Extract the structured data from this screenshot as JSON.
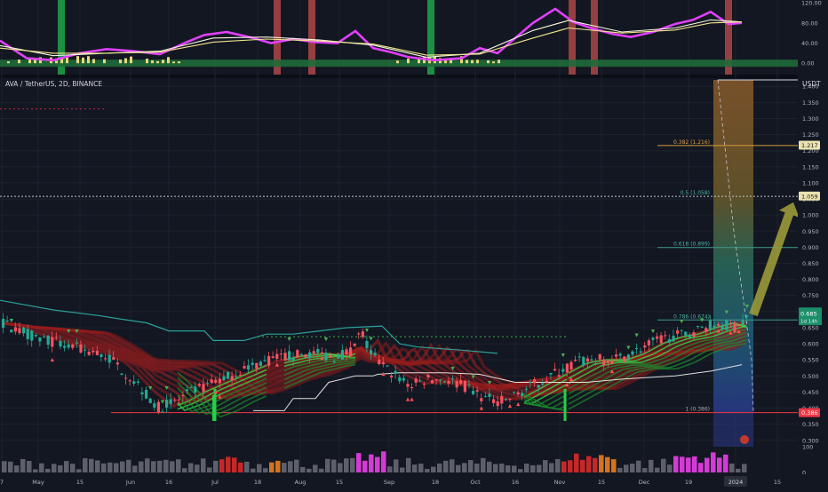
{
  "symbol_title": "AVA / TetherUS, 2D, BINANCE",
  "currency": "USDT",
  "colors": {
    "background": "#131722",
    "grid": "#1e222d",
    "up": "#26a69a",
    "down": "#ef5350",
    "ribbon_red": "#b71c1c",
    "ribbon_green": "#1b8f2a",
    "indicator_magenta": "#e040fb",
    "indicator_yellow": "#f0e68c",
    "fib_line": "#d1d4dc",
    "arrow": "#9c9a3a",
    "support": "#f23645"
  },
  "chart_data": [
    {
      "type": "line",
      "panel": "oscillator",
      "ylim": [
        -12,
        122
      ],
      "y_ticks": [
        "120.00",
        "80.00",
        "40.00",
        "0.00"
      ],
      "series": [
        {
          "color": "#e040fb",
          "points": [
            [
              0,
              45
            ],
            [
              30,
              10
            ],
            [
              60,
              6
            ],
            [
              90,
              20
            ],
            [
              120,
              28
            ],
            [
              150,
              24
            ],
            [
              180,
              18
            ],
            [
              210,
              42
            ],
            [
              230,
              56
            ],
            [
              255,
              62
            ],
            [
              285,
              50
            ],
            [
              305,
              40
            ],
            [
              330,
              48
            ],
            [
              355,
              42
            ],
            [
              380,
              40
            ],
            [
              400,
              64
            ],
            [
              420,
              30
            ],
            [
              440,
              22
            ],
            [
              460,
              12
            ],
            [
              490,
              6
            ],
            [
              520,
              10
            ],
            [
              540,
              30
            ],
            [
              560,
              20
            ],
            [
              580,
              50
            ],
            [
              600,
              80
            ],
            [
              625,
              108
            ],
            [
              645,
              82
            ],
            [
              665,
              70
            ],
            [
              690,
              58
            ],
            [
              710,
              52
            ],
            [
              735,
              62
            ],
            [
              760,
              78
            ],
            [
              780,
              86
            ],
            [
              800,
              102
            ],
            [
              820,
              78
            ],
            [
              835,
              80
            ]
          ]
        },
        {
          "color": "#f5f5dc",
          "points": [
            [
              0,
              35
            ],
            [
              60,
              15
            ],
            [
              120,
              20
            ],
            [
              180,
              24
            ],
            [
              240,
              50
            ],
            [
              300,
              52
            ],
            [
              360,
              46
            ],
            [
              420,
              36
            ],
            [
              480,
              12
            ],
            [
              540,
              20
            ],
            [
              600,
              65
            ],
            [
              640,
              85
            ],
            [
              700,
              62
            ],
            [
              760,
              70
            ],
            [
              800,
              86
            ],
            [
              835,
              82
            ]
          ]
        },
        {
          "color": "#f0e68c",
          "points": [
            [
              0,
              30
            ],
            [
              60,
              20
            ],
            [
              120,
              20
            ],
            [
              180,
              22
            ],
            [
              240,
              42
            ],
            [
              300,
              48
            ],
            [
              360,
              44
            ],
            [
              420,
              38
            ],
            [
              480,
              16
            ],
            [
              540,
              18
            ],
            [
              600,
              50
            ],
            [
              640,
              70
            ],
            [
              700,
              60
            ],
            [
              760,
              66
            ],
            [
              800,
              80
            ],
            [
              835,
              82
            ]
          ]
        }
      ],
      "highlight_bands": [
        {
          "x": 69,
          "color": "green"
        },
        {
          "x": 312,
          "color": "red"
        },
        {
          "x": 351,
          "color": "red"
        },
        {
          "x": 485,
          "color": "green"
        },
        {
          "x": 644,
          "color": "red"
        },
        {
          "x": 669,
          "color": "red"
        },
        {
          "x": 820,
          "color": "red"
        }
      ]
    },
    {
      "type": "candlestick",
      "panel": "price",
      "ylim": [
        0.28,
        1.42
      ],
      "y_ticks": [
        "1.400",
        "1.350",
        "1.300",
        "1.250",
        "1.200",
        "1.150",
        "1.100",
        "1.050",
        "1.000",
        "0.950",
        "0.900",
        "0.850",
        "0.800",
        "0.750",
        "0.700",
        "0.650",
        "0.600",
        "0.550",
        "0.500",
        "0.450",
        "0.400",
        "0.350",
        "0.300"
      ],
      "x_labels": [
        "7",
        "May",
        "15",
        "Jun",
        "16",
        "Jul",
        "18",
        "Aug",
        "15",
        "Sep",
        "18",
        "Oct",
        "16",
        "Nov",
        "15",
        "Dec",
        "19",
        "2024",
        "15"
      ],
      "close_path": [
        [
          0,
          0.665
        ],
        [
          40,
          0.62
        ],
        [
          80,
          0.59
        ],
        [
          120,
          0.56
        ],
        [
          155,
          0.47
        ],
        [
          175,
          0.4
        ],
        [
          195,
          0.42
        ],
        [
          215,
          0.45
        ],
        [
          240,
          0.48
        ],
        [
          265,
          0.51
        ],
        [
          290,
          0.54
        ],
        [
          320,
          0.56
        ],
        [
          350,
          0.57
        ],
        [
          375,
          0.56
        ],
        [
          395,
          0.58
        ],
        [
          405,
          0.64
        ],
        [
          415,
          0.57
        ],
        [
          430,
          0.53
        ],
        [
          445,
          0.5
        ],
        [
          460,
          0.47
        ],
        [
          480,
          0.49
        ],
        [
          500,
          0.49
        ],
        [
          520,
          0.47
        ],
        [
          545,
          0.43
        ],
        [
          565,
          0.42
        ],
        [
          585,
          0.45
        ],
        [
          605,
          0.48
        ],
        [
          625,
          0.51
        ],
        [
          645,
          0.54
        ],
        [
          665,
          0.55
        ],
        [
          690,
          0.55
        ],
        [
          710,
          0.57
        ],
        [
          730,
          0.6
        ],
        [
          750,
          0.62
        ],
        [
          770,
          0.63
        ],
        [
          790,
          0.65
        ],
        [
          810,
          0.665
        ],
        [
          825,
          0.65
        ],
        [
          840,
          0.685
        ]
      ],
      "fib_levels": [
        {
          "label": "0.382 (1.216)",
          "value": 1.216
        },
        {
          "label": "0.5 (1.058)",
          "value": 1.058
        },
        {
          "label": "0.618 (0.899)",
          "value": 0.899
        },
        {
          "label": "0.786 (0.674)",
          "value": 0.674
        },
        {
          "label": "1 (0.386)",
          "value": 0.386
        }
      ],
      "fib_range": [
        0.386,
        1.42
      ],
      "support_value": 0.386,
      "trailing_stop": [
        [
          0,
          0.735
        ],
        [
          60,
          0.705
        ],
        [
          110,
          0.688
        ],
        [
          140,
          0.675
        ],
        [
          165,
          0.665
        ],
        [
          190,
          0.64
        ],
        [
          230,
          0.64
        ],
        [
          240,
          0.61
        ],
        [
          275,
          0.61
        ],
        [
          300,
          0.63
        ],
        [
          330,
          0.63
        ],
        [
          360,
          0.64
        ],
        [
          390,
          0.65
        ],
        [
          430,
          0.655
        ],
        [
          450,
          0.6
        ],
        [
          470,
          0.59
        ],
        [
          520,
          0.58
        ],
        [
          560,
          0.57
        ]
      ],
      "lower_step": [
        [
          285,
          0.392
        ],
        [
          320,
          0.392
        ],
        [
          330,
          0.43
        ],
        [
          355,
          0.43
        ],
        [
          370,
          0.48
        ],
        [
          400,
          0.5
        ],
        [
          420,
          0.5
        ],
        [
          425,
          0.505
        ],
        [
          450,
          0.51
        ],
        [
          500,
          0.51
        ],
        [
          540,
          0.505
        ],
        [
          580,
          0.48
        ],
        [
          630,
          0.48
        ],
        [
          660,
          0.48
        ],
        [
          700,
          0.49
        ],
        [
          760,
          0.5
        ],
        [
          800,
          0.515
        ],
        [
          835,
          0.535
        ]
      ],
      "marker_level": 0.622,
      "price_badge": "0.685",
      "price_badge_sub": "1d 14h",
      "axis_badges": [
        {
          "text": "1.217",
          "value": 1.217
        },
        {
          "text": "1.059",
          "value": 1.059
        },
        {
          "text": "0.386",
          "value": 0.386
        }
      ]
    },
    {
      "type": "bar",
      "panel": "volume",
      "ylim": [
        0,
        100
      ],
      "y_ticks": [
        "100",
        "0"
      ]
    }
  ]
}
